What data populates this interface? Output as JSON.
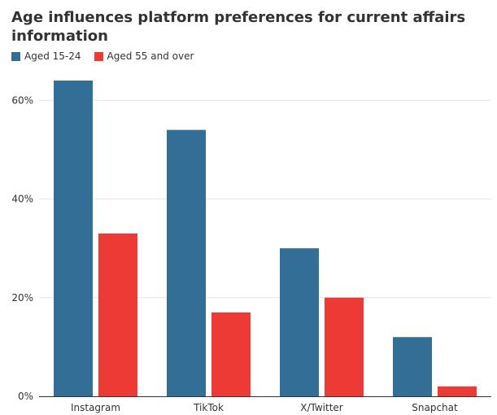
{
  "chart_data": {
    "type": "bar",
    "title": "Age influences platform preferences for current affairs information",
    "categories": [
      "Instagram",
      "TikTok",
      "X/Twitter",
      "Snapchat"
    ],
    "series": [
      {
        "name": "Aged 15-24",
        "values": [
          64,
          54,
          30,
          12
        ],
        "color": "#336e96"
      },
      {
        "name": "Aged 55 and over",
        "values": [
          33,
          17,
          20,
          2
        ],
        "color": "#ee3a35"
      }
    ],
    "ylim": [
      0,
      64
    ],
    "yticks": [
      0,
      20,
      40,
      60
    ],
    "ytick_labels": [
      "0%",
      "20%",
      "40%",
      "60%"
    ],
    "grid": true,
    "legend_placement": "top-left"
  }
}
